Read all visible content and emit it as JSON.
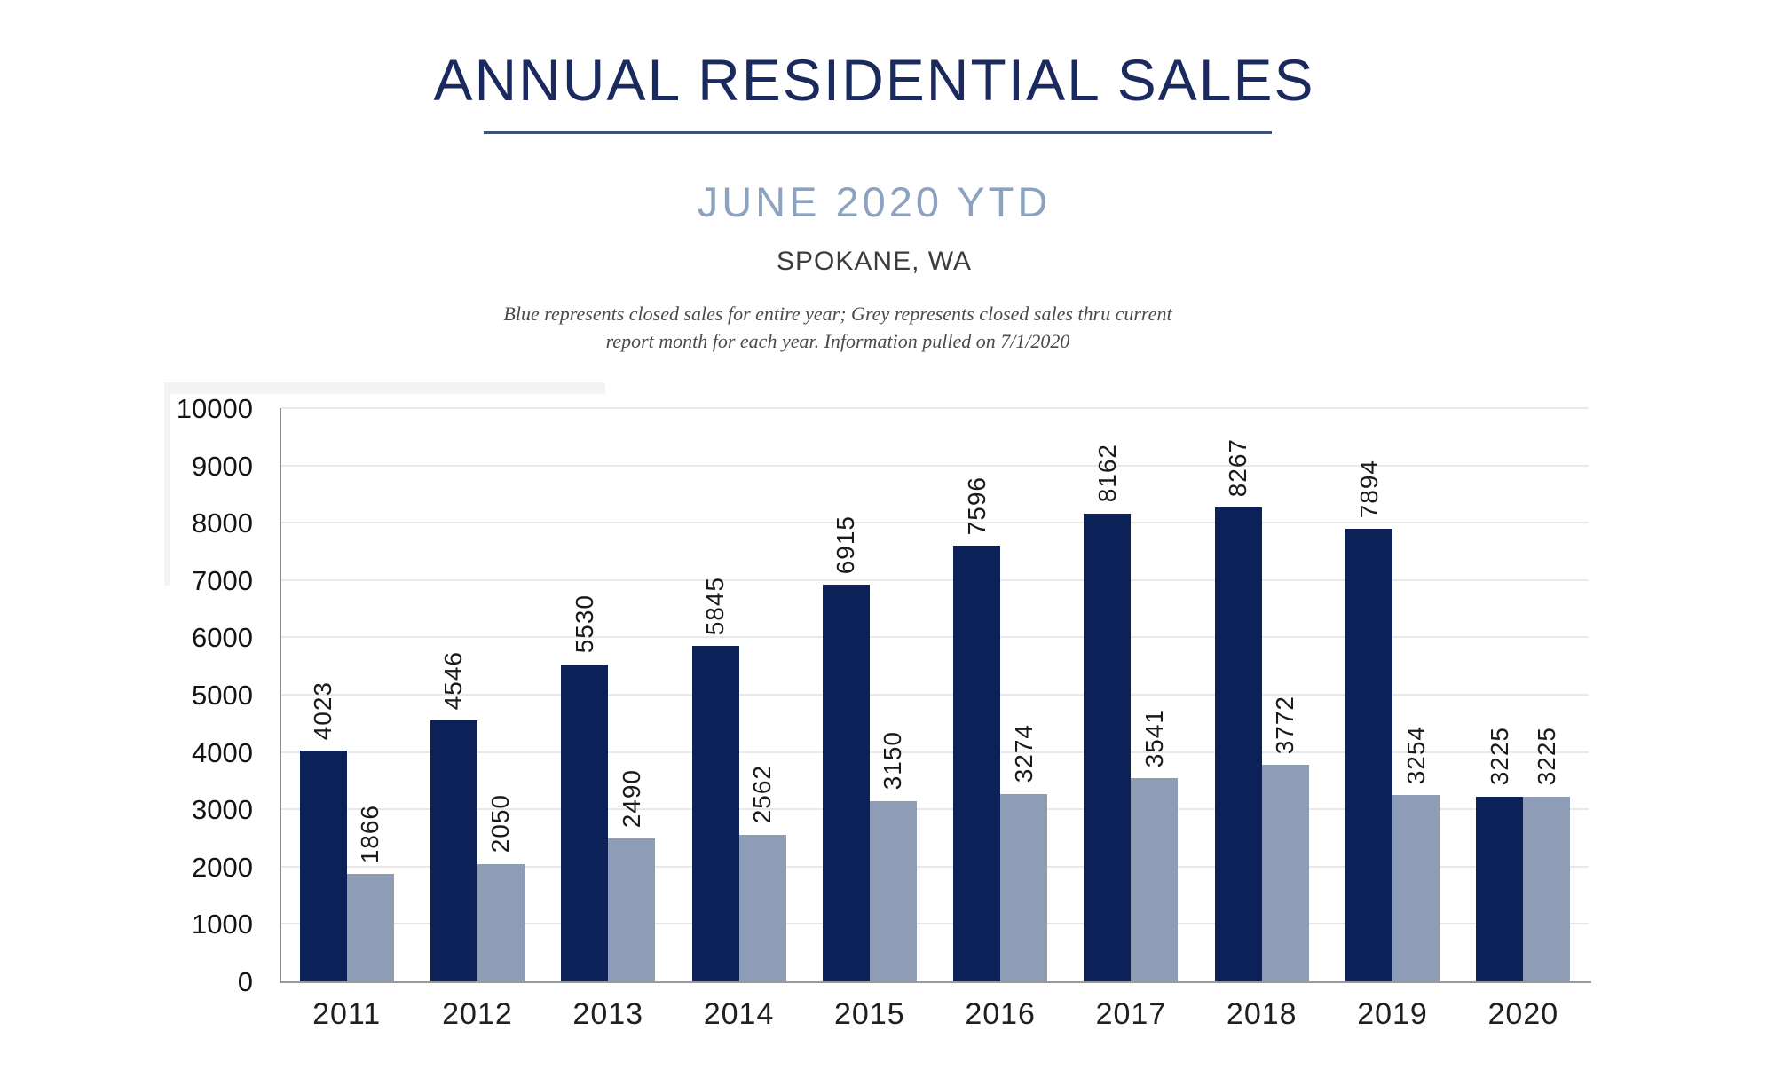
{
  "header": {
    "title": "ANNUAL RESIDENTIAL SALES",
    "subtitle": "JUNE 2020 YTD",
    "location": "SPOKANE, WA",
    "note_line1": "Blue represents closed sales for entire year; Grey represents closed sales thru current",
    "note_line2": "report month for each year.  Information pulled on 7/1/2020"
  },
  "colors": {
    "title_navy": "#1a2a5e",
    "subtitle_blue_grey": "#8ca2bf",
    "bar_blue": "#0b2158",
    "bar_grey": "#8e9db5",
    "gridline": "#e9e9e9",
    "axis_line": "#9a9a9a",
    "data_label": "#1a1a1a"
  },
  "chart_data": {
    "type": "bar",
    "title": "Annual Residential Sales — June 2020 YTD — Spokane, WA",
    "categories": [
      "2011",
      "2012",
      "2013",
      "2014",
      "2015",
      "2016",
      "2017",
      "2018",
      "2019",
      "2020"
    ],
    "series": [
      {
        "name": "Closed sales for entire year (Blue)",
        "color_key": "bar_blue",
        "values": [
          4023,
          4546,
          5530,
          5845,
          6915,
          7596,
          8162,
          8267,
          7894,
          3225
        ]
      },
      {
        "name": "Closed sales thru current report month (Grey)",
        "color_key": "bar_grey",
        "values": [
          1866,
          2050,
          2490,
          2562,
          3150,
          3274,
          3541,
          3772,
          3254,
          3225
        ]
      }
    ],
    "xlabel": "",
    "ylabel": "",
    "ylim": [
      0,
      10000
    ],
    "ytick_step": 1000,
    "grid": true,
    "legend_position": "none",
    "data_labels": "rotated-90-above-bars"
  }
}
